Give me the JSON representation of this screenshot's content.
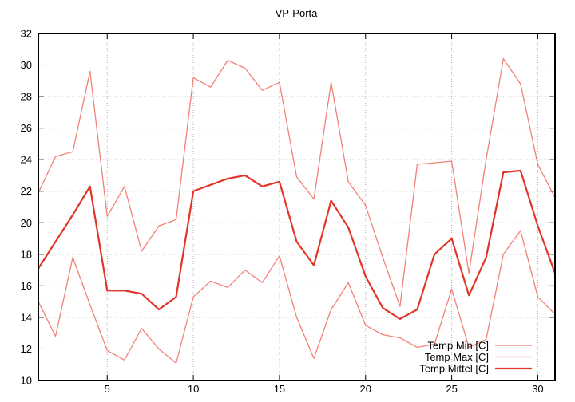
{
  "title": "VP-Porta",
  "chart_data": {
    "type": "line",
    "title": "VP-Porta",
    "xlabel": "",
    "ylabel": "",
    "x": [
      1,
      2,
      3,
      4,
      5,
      6,
      7,
      8,
      9,
      10,
      11,
      12,
      13,
      14,
      15,
      16,
      17,
      18,
      19,
      20,
      21,
      22,
      23,
      24,
      25,
      26,
      27,
      28,
      29,
      30,
      31
    ],
    "xlim": [
      1,
      31
    ],
    "ylim": [
      10,
      32
    ],
    "x_ticks": [
      5,
      10,
      15,
      20,
      25,
      30
    ],
    "y_ticks": [
      10,
      12,
      14,
      16,
      18,
      20,
      22,
      24,
      26,
      28,
      30,
      32
    ],
    "grid": true,
    "legend_position": "inside-bottom-right",
    "series": [
      {
        "name": "Temp Min [C]",
        "color": "#f28077",
        "line_width": 1.3,
        "values": [
          15.0,
          12.8,
          17.8,
          14.8,
          11.9,
          11.3,
          13.3,
          12.0,
          11.1,
          15.3,
          16.3,
          15.9,
          17.0,
          16.2,
          17.9,
          14.0,
          11.4,
          14.5,
          16.2,
          13.5,
          12.9,
          12.7,
          12.1,
          12.3,
          15.8,
          12.1,
          12.6,
          18.0,
          19.5,
          15.3,
          14.2
        ]
      },
      {
        "name": "Temp Max [C]",
        "color": "#f28077",
        "line_width": 1.3,
        "values": [
          21.9,
          24.2,
          24.5,
          29.6,
          20.4,
          22.3,
          18.2,
          19.8,
          20.2,
          29.2,
          28.6,
          30.3,
          29.8,
          28.4,
          28.9,
          22.9,
          21.5,
          28.9,
          22.6,
          21.1,
          17.8,
          14.7,
          23.7,
          23.8,
          23.9,
          16.8,
          24.0,
          30.4,
          28.8,
          23.7,
          21.6
        ]
      },
      {
        "name": "Temp Mittel [C]",
        "color": "#e13528",
        "line_width": 2.2,
        "values": [
          17.1,
          18.8,
          20.5,
          22.3,
          15.7,
          15.7,
          15.5,
          14.5,
          15.3,
          22.0,
          22.4,
          22.8,
          23.0,
          22.3,
          22.6,
          18.8,
          17.3,
          21.4,
          19.7,
          16.6,
          14.6,
          13.9,
          14.5,
          18.0,
          19.0,
          15.4,
          17.8,
          23.2,
          23.3,
          19.8,
          16.8
        ]
      }
    ],
    "colors": {
      "background": "#ffffff",
      "axis": "#000000",
      "grid": "#b0b0b0",
      "text": "#000000"
    }
  }
}
